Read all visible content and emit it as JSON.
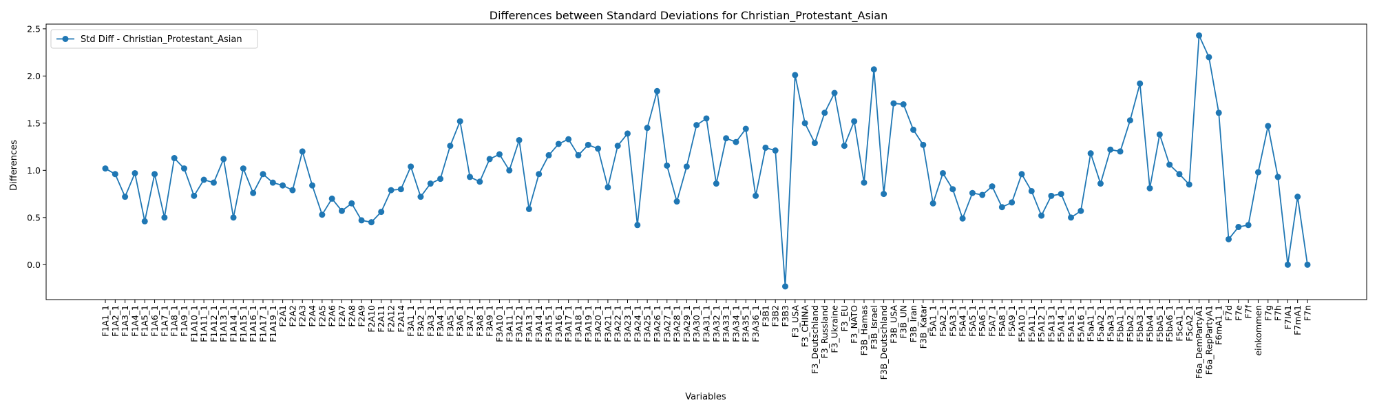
{
  "chart_data": {
    "type": "line",
    "title": "Differences between Standard Deviations for Christian_Protestant_Asian",
    "xlabel": "Variables",
    "ylabel": "Differences",
    "ylim": [
      -0.37,
      2.55
    ],
    "yticks": [
      "0.0",
      "0.5",
      "1.0",
      "1.5",
      "2.0",
      "2.5"
    ],
    "yticks_values": [
      0.0,
      0.5,
      1.0,
      1.5,
      2.0,
      2.5
    ],
    "grid": false,
    "legend_position": "top-left",
    "color": "#1f77b4",
    "marker": "circle",
    "categories": [
      "F1A1_1",
      "F1A2_1",
      "F1A3_1",
      "F1A4_1",
      "F1A5_1",
      "F1A6_1",
      "F1A7_1",
      "F1A8_1",
      "F1A9_1",
      "F1A10_1",
      "F1A11_1",
      "F1A12_1",
      "F1A13_1",
      "F1A14_1",
      "F1A15_1",
      "F1A16_1",
      "F1A17_1",
      "F1A19_1",
      "F2A1",
      "F2A2",
      "F2A3",
      "F2A4",
      "F2A5",
      "F2A6",
      "F2A7",
      "F2A8",
      "F2A9",
      "F2A10",
      "F2A11",
      "F2A12",
      "F2A14",
      "F3A1_1",
      "F3A2_1",
      "F3A3_1",
      "F3A4_1",
      "F3A5_1",
      "F3A6_1",
      "F3A7_1",
      "F3A8_1",
      "F3A9_1",
      "F3A10_1",
      "F3A11_1",
      "F3A12_1",
      "F3A13_1",
      "F3A14_1",
      "F3A15_1",
      "F3A16_1",
      "F3A17_1",
      "F3A18_1",
      "F3A19_1",
      "F3A20_1",
      "F3A21_1",
      "F3A22_1",
      "F3A23_1",
      "F3A24_1",
      "F3A25_1",
      "F3A26_1",
      "F3A27_1",
      "F3A28_1",
      "F3A29_1",
      "F3A30_1",
      "F3A31_1",
      "F3A32_1",
      "F3A33_1",
      "F3A34_1",
      "F3A35_1",
      "F3A36_1",
      "F3B1",
      "F3B2",
      "F3B3",
      "F3_USA",
      "F3_CHINA",
      "F3_Deutschland",
      "F3_Russland",
      "F3_Ukraine",
      "F3_EU",
      "F3_NATO",
      "F3B_Hamas",
      "F3B_Israel",
      "F3B_Deutschland",
      "F3B_USA",
      "F3B_UN",
      "F3B_Iran",
      "F3B_Katar",
      "F5A1_1",
      "F5A2_1",
      "F5A3_1",
      "F5A4_1",
      "F5A5_1",
      "F5A6_1",
      "F5A7_1",
      "F5A8_1",
      "F5A9_1",
      "F5A10_1",
      "F5A11_1",
      "F5A12_1",
      "F5A13_1",
      "F5A14_1",
      "F5A15_1",
      "F5A16_1",
      "F5aA1_1",
      "F5aA2_1",
      "F5aA3_1",
      "F5bA1_1",
      "F5bA2_1",
      "F5bA3_1",
      "F5bA4_1",
      "F5bA5_1",
      "F5bA6_1",
      "F5cA1_1",
      "F5cA2_1",
      "F6a_DemPartyA1",
      "F6a_RepPartyA1",
      "F6mA1_1",
      "F7d",
      "F7e",
      "F7f",
      "einkommen",
      "F7g",
      "F7h",
      "F7IA1",
      "F7mA1",
      "F7n"
    ],
    "series": [
      {
        "name": "Std Diff - Christian_Protestant_Asian",
        "values": [
          1.02,
          0.96,
          0.72,
          0.97,
          0.46,
          0.96,
          0.5,
          1.13,
          1.02,
          0.73,
          0.9,
          0.87,
          1.12,
          0.5,
          1.02,
          0.76,
          0.96,
          0.87,
          0.84,
          0.79,
          1.2,
          0.84,
          0.53,
          0.7,
          0.57,
          0.65,
          0.47,
          0.45,
          0.56,
          0.79,
          0.8,
          1.04,
          0.72,
          0.86,
          0.91,
          1.26,
          1.52,
          0.93,
          0.88,
          1.12,
          1.17,
          1.0,
          1.32,
          0.59,
          0.96,
          1.16,
          1.28,
          1.33,
          1.16,
          1.27,
          1.23,
          0.82,
          1.26,
          1.39,
          0.42,
          1.45,
          1.84,
          1.05,
          0.67,
          1.04,
          1.48,
          1.55,
          0.86,
          1.34,
          1.3,
          1.44,
          0.73,
          1.24,
          1.21,
          -0.23,
          2.01,
          1.5,
          1.29,
          1.61,
          1.82,
          1.26,
          1.52,
          0.87,
          2.07,
          0.75,
          1.71,
          1.7,
          1.43,
          1.27,
          0.65,
          0.97,
          0.8,
          0.49,
          0.76,
          0.74,
          0.83,
          0.61,
          0.66,
          0.96,
          0.78,
          0.52,
          0.73,
          0.75,
          0.5,
          0.57,
          1.18,
          0.86,
          1.22,
          1.2,
          1.53,
          1.92,
          0.81,
          1.38,
          1.06,
          0.96,
          0.85,
          2.43,
          2.2,
          1.61,
          0.27,
          0.4,
          0.42,
          0.98,
          1.47,
          0.93,
          0.0,
          0.72,
          0.0
        ]
      }
    ]
  }
}
